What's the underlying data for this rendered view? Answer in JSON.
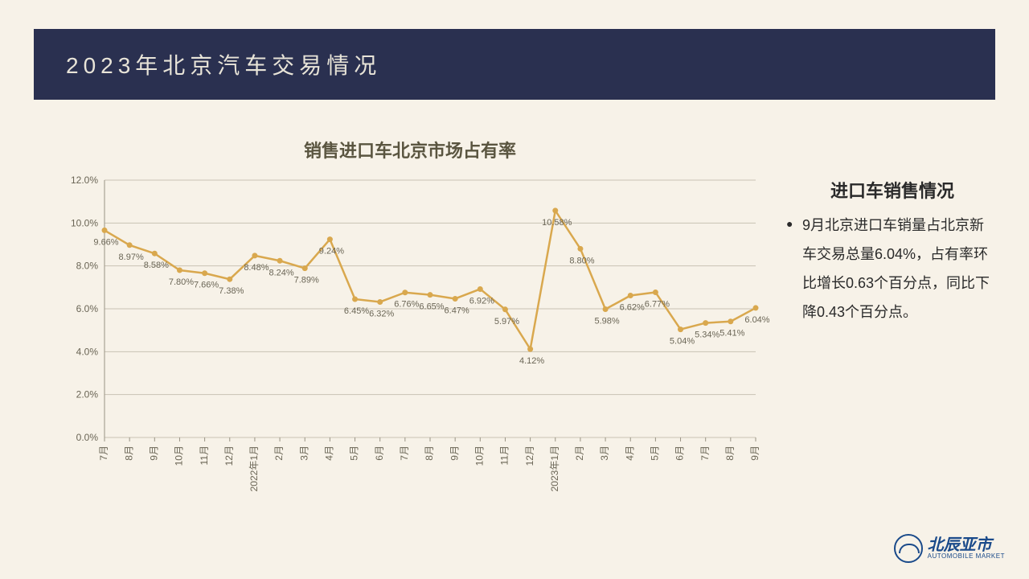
{
  "header": {
    "title": "2023年北京汽车交易情况"
  },
  "chart": {
    "type": "line",
    "title": "销售进口车北京市场占有率",
    "labels": [
      "7月",
      "8月",
      "9月",
      "10月",
      "11月",
      "12月",
      "2022年1月",
      "2月",
      "3月",
      "4月",
      "5月",
      "6月",
      "7月",
      "8月",
      "9月",
      "10月",
      "11月",
      "12月",
      "2023年1月",
      "2月",
      "3月",
      "4月",
      "5月",
      "6月",
      "7月",
      "8月",
      "9月"
    ],
    "values": [
      9.66,
      8.97,
      8.58,
      7.8,
      7.66,
      7.38,
      8.48,
      8.24,
      7.89,
      9.24,
      6.45,
      6.32,
      6.76,
      6.65,
      6.47,
      6.92,
      5.97,
      4.12,
      10.58,
      8.8,
      5.98,
      6.62,
      6.77,
      5.04,
      5.34,
      5.41,
      6.04
    ],
    "value_labels": [
      "9.66%",
      "8.97%",
      "8.58%",
      "7.80%",
      "7.66%",
      "7.38%",
      "8.48%",
      "8.24%",
      "7.89%",
      "9.24%",
      "6.45%",
      "6.32%",
      "6.76%",
      "6.65%",
      "6.47%",
      "6.92%",
      "5.97%",
      "4.12%",
      "10.58%",
      "8.80%",
      "5.98%",
      "6.62%",
      "6.77%",
      "5.04%",
      "5.34%",
      "5.41%",
      "6.04%"
    ],
    "ylim": [
      0,
      12
    ],
    "ytick_step": 2,
    "ytick_format": ".0%",
    "line_color": "#d9a84e",
    "line_width": 2.5,
    "marker_color": "#d9a84e",
    "marker_size": 3.5,
    "grid_color": "#c8c2b4",
    "axis_color": "#9a9485",
    "background_color": "#f7f2e8",
    "label_color": "#6a6555",
    "label_fontsize": 12,
    "title_color": "#5a5540",
    "title_fontsize": 22
  },
  "side": {
    "title": "进口车销售情况",
    "body": "9月北京进口车销量占北京新车交易总量6.04%，占有率环比增长0.63个百分点，同比下降0.43个百分点。"
  },
  "logo": {
    "cn": "北辰亚市",
    "en": "AUTOMOBILE MARKET"
  }
}
